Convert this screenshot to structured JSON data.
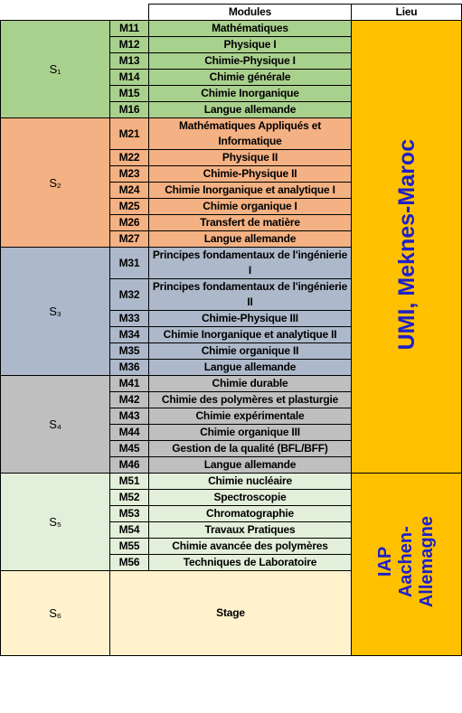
{
  "header": {
    "modules": "Modules",
    "lieu": "Lieu"
  },
  "semesters": [
    {
      "label": "S₁",
      "color": "#a9d18e",
      "modules": [
        {
          "code": "M11",
          "name": "Mathématiques"
        },
        {
          "code": "M12",
          "name": "Physique I"
        },
        {
          "code": "M13",
          "name": "Chimie-Physique I"
        },
        {
          "code": "M14",
          "name": "Chimie générale"
        },
        {
          "code": "M15",
          "name": "Chimie Inorganique"
        },
        {
          "code": "M16",
          "name": "Langue allemande"
        }
      ]
    },
    {
      "label": "S₂",
      "color": "#f4b183",
      "modules": [
        {
          "code": "M21",
          "name": "Mathématiques Appliqués et Informatique"
        },
        {
          "code": "M22",
          "name": "Physique II"
        },
        {
          "code": "M23",
          "name": "Chimie-Physique II"
        },
        {
          "code": "M24",
          "name": "Chimie Inorganique et analytique I"
        },
        {
          "code": "M25",
          "name": "Chimie organique I"
        },
        {
          "code": "M26",
          "name": "Transfert de matière"
        },
        {
          "code": "M27",
          "name": "Langue allemande"
        }
      ]
    },
    {
      "label": "S₃",
      "color": "#adb9ca",
      "modules": [
        {
          "code": "M31",
          "name": "Principes fondamentaux de l'ingénierie I"
        },
        {
          "code": "M32",
          "name": "Principes fondamentaux de l'ingénierie II"
        },
        {
          "code": "M33",
          "name": "Chimie-Physique III"
        },
        {
          "code": "M34",
          "name": "Chimie Inorganique et analytique II"
        },
        {
          "code": "M35",
          "name": "Chimie organique II"
        },
        {
          "code": "M36",
          "name": "Langue allemande"
        }
      ]
    },
    {
      "label": "S₄",
      "color": "#bfbfbf",
      "modules": [
        {
          "code": "M41",
          "name": "Chimie durable"
        },
        {
          "code": "M42",
          "name": "Chimie des polymères et plasturgie"
        },
        {
          "code": "M43",
          "name": "Chimie expérimentale"
        },
        {
          "code": "M44",
          "name": "Chimie organique III"
        },
        {
          "code": "M45",
          "name": "Gestion de la qualité (BFL/BFF)"
        },
        {
          "code": "M46",
          "name": "Langue allemande"
        }
      ]
    },
    {
      "label": "S₅",
      "color": "#e2efda",
      "modules": [
        {
          "code": "M51",
          "name": "Chimie nucléaire"
        },
        {
          "code": "M52",
          "name": "Spectroscopie"
        },
        {
          "code": "M53",
          "name": "Chromatographie"
        },
        {
          "code": "M54",
          "name": "Travaux Pratiques"
        },
        {
          "code": "M55",
          "name": "Chimie avancée des polymères"
        },
        {
          "code": "M56",
          "name": "Techniques de Laboratoire"
        }
      ]
    },
    {
      "label": "S₆",
      "color": "#fff2cc",
      "stage": "Stage"
    }
  ],
  "lieu": [
    {
      "lines": [
        "UMI, Meknes-Maroc"
      ],
      "semester_count": 4
    },
    {
      "lines": [
        "IAP",
        "Aachen-",
        "Allemagne"
      ],
      "semester_count": 2
    }
  ],
  "lieu_color": "#ffc000",
  "lieu_text_color": "#1f1fc8"
}
